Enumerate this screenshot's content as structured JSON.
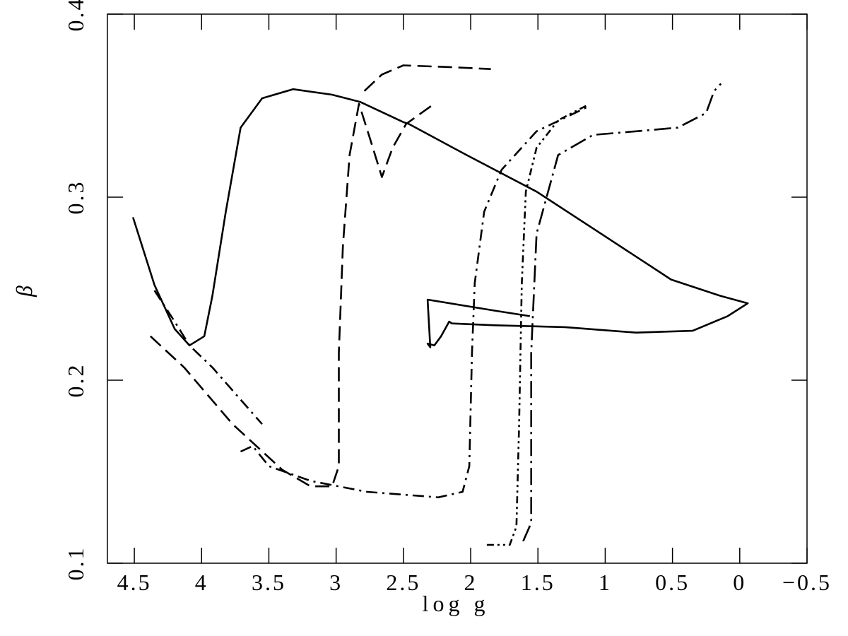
{
  "chart_data": {
    "type": "line",
    "x_label": "log g",
    "y_label": "β",
    "xlim": [
      4.7,
      -0.5
    ],
    "ylim": [
      0.1,
      0.4
    ],
    "xticks": [
      4.5,
      4,
      3.5,
      3,
      2.5,
      2,
      1.5,
      1,
      0.5,
      0,
      {
        "value": -0.5,
        "label": "−0.5"
      }
    ],
    "yticks": [
      0.1,
      0.2,
      0.3,
      0.4
    ],
    "series": [
      {
        "color": "#000000",
        "dash": "none",
        "x": [
          4.51,
          4.35,
          4.2,
          4.09,
          3.98,
          3.92,
          3.82,
          3.71,
          3.55,
          3.32,
          3.03,
          2.82,
          2.5,
          2.46,
          2.03,
          1.51,
          1.03,
          0.51,
          0.14,
          -0.06,
          0.09,
          0.35,
          0.77,
          1.3,
          1.82,
          2.14,
          2.16,
          2.22,
          2.27,
          2.32,
          2.3,
          2.32,
          1.82,
          1.56
        ],
        "y": [
          0.289,
          0.252,
          0.228,
          0.219,
          0.224,
          0.246,
          0.292,
          0.338,
          0.354,
          0.359,
          0.356,
          0.352,
          0.341,
          0.34,
          0.323,
          0.303,
          0.28,
          0.255,
          0.246,
          0.242,
          0.235,
          0.227,
          0.226,
          0.229,
          0.23,
          0.231,
          0.232,
          0.224,
          0.219,
          0.22,
          0.218,
          0.244,
          0.238,
          0.235
        ]
      },
      {
        "color": "#000000",
        "dash": "20,9",
        "x": [
          4.38,
          4.13,
          3.77,
          3.4,
          3.19,
          3.03,
          2.98,
          2.98,
          2.95,
          2.9,
          2.83,
          2.74,
          2.66,
          2.58,
          2.48,
          2.29,
          null,
          2.79,
          2.66,
          2.5,
          2.14,
          1.85
        ],
        "y": [
          0.224,
          0.207,
          0.176,
          0.151,
          0.142,
          0.142,
          0.153,
          0.215,
          0.273,
          0.323,
          0.351,
          0.33,
          0.311,
          0.327,
          0.34,
          0.35,
          null,
          0.358,
          0.367,
          0.372,
          0.371,
          0.37
        ]
      },
      {
        "color": "#000000",
        "dash": "16,7,3,7",
        "x": [
          4.35,
          4.2,
          4.09,
          3.92,
          3.55,
          null,
          3.71,
          3.62,
          3.5,
          3.19,
          2.77,
          2.24,
          2.06,
          2.01,
          1.99,
          1.97,
          1.9,
          1.77,
          1.51,
          1.14
        ],
        "y": [
          0.249,
          0.232,
          0.219,
          0.207,
          0.176,
          null,
          0.161,
          0.164,
          0.153,
          0.145,
          0.139,
          0.136,
          0.139,
          0.153,
          0.215,
          0.253,
          0.292,
          0.315,
          0.336,
          0.349
        ]
      },
      {
        "color": "#000000",
        "dash": "10,5,3,5,3,5",
        "x": [
          1.88,
          1.71,
          1.66,
          1.64,
          1.62,
          1.59,
          1.51,
          1.35,
          1.14
        ],
        "y": [
          0.11,
          0.11,
          0.12,
          0.176,
          0.253,
          0.303,
          0.327,
          0.342,
          0.35
        ]
      },
      {
        "color": "#000000",
        "dash": "24,7,3,7",
        "x": [
          1.61,
          1.55,
          1.55,
          1.51,
          1.35,
          1.09,
          0.77,
          0.46,
          0.25,
          0.19,
          0.14
        ],
        "y": [
          0.112,
          0.122,
          0.215,
          0.28,
          0.323,
          0.334,
          0.336,
          0.338,
          0.346,
          0.358,
          0.362
        ]
      }
    ]
  }
}
